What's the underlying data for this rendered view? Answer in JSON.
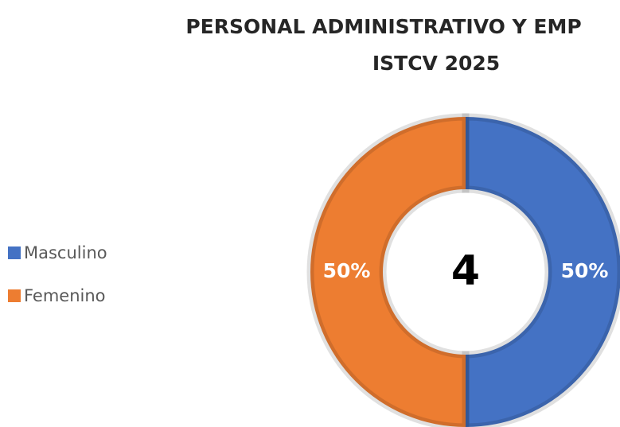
{
  "chart_data": {
    "type": "donut",
    "title": [
      "PERSONAL ADMINISTRATIVO Y EMP",
      "ISTCV 2025"
    ],
    "categories": [
      "Masculino",
      "Femenino"
    ],
    "values": [
      50,
      50
    ],
    "value_labels": [
      "50%",
      "50%"
    ],
    "colors": [
      "#4472c4",
      "#ed7d31"
    ],
    "center_label": "4",
    "legend": "left"
  }
}
